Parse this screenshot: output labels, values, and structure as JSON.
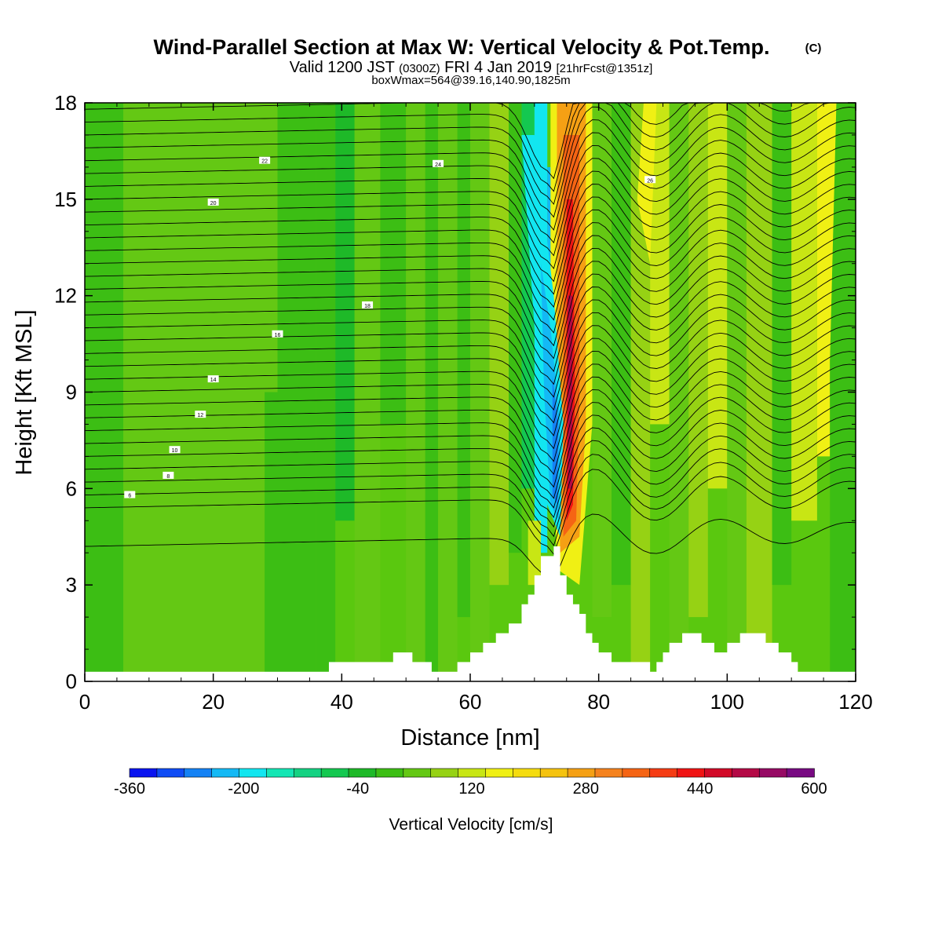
{
  "titles": {
    "main": "Wind-Parallel Section at Max W: Vertical Velocity & Pot.Temp.",
    "copyright": "(C)",
    "valid_prefix": "Valid 1200 JST",
    "valid_utc": "(0300Z)",
    "valid_date": "FRI 4 Jan 2019",
    "forecast": "[21hrFcst@1351z]",
    "boxwmax": "boxWmax=564@39.16,140.90,1825m"
  },
  "chart_data": {
    "type": "heatmap",
    "title": "Wind-Parallel Section at Max W: Vertical Velocity & Pot.Temp.",
    "xlabel": "Distance [nm]",
    "ylabel": "Height [Kft MSL]",
    "xlim": [
      0,
      120
    ],
    "ylim": [
      0,
      18
    ],
    "x_ticks": [
      "0",
      "20",
      "40",
      "60",
      "80",
      "100",
      "120"
    ],
    "y_ticks": [
      "0",
      "3",
      "6",
      "9",
      "12",
      "15",
      "18"
    ],
    "colorbar": {
      "label": "Vertical Velocity [cm/s]",
      "tick_labels": [
        "-360",
        "-200",
        "-40",
        "120",
        "280",
        "440",
        "600"
      ],
      "levels": [
        -360,
        600
      ],
      "colors": [
        "#0a14f0",
        "#0f4cf5",
        "#1482f5",
        "#14b9f5",
        "#12e6f0",
        "#14e6b4",
        "#14d282",
        "#14c850",
        "#1eb928",
        "#3cbe14",
        "#64c814",
        "#96d214",
        "#c8e614",
        "#f0f014",
        "#f5dc0f",
        "#f5c30f",
        "#f5a014",
        "#f5821e",
        "#f56414",
        "#f53c14",
        "#f01414",
        "#d20a28",
        "#b40a46",
        "#960a64",
        "#780a82"
      ]
    },
    "terrain_profile": [
      [
        0,
        0.3
      ],
      [
        36,
        0.3
      ],
      [
        38,
        0.6
      ],
      [
        47,
        0.6
      ],
      [
        48,
        0.9
      ],
      [
        50,
        0.9
      ],
      [
        51,
        0.6
      ],
      [
        54,
        0.3
      ],
      [
        57,
        0.3
      ],
      [
        58,
        0.6
      ],
      [
        60,
        0.9
      ],
      [
        62,
        1.2
      ],
      [
        64,
        1.5
      ],
      [
        66,
        1.8
      ],
      [
        68,
        2.4
      ],
      [
        69,
        2.7
      ],
      [
        70,
        3.3
      ],
      [
        71,
        3.9
      ],
      [
        73,
        4.2
      ],
      [
        74,
        3.3
      ],
      [
        75,
        2.7
      ],
      [
        76,
        2.4
      ],
      [
        77,
        2.1
      ],
      [
        78,
        1.5
      ],
      [
        79,
        1.2
      ],
      [
        80,
        0.9
      ],
      [
        82,
        0.6
      ],
      [
        88,
        0.3
      ],
      [
        89,
        0.6
      ],
      [
        90,
        0.9
      ],
      [
        91,
        1.2
      ],
      [
        93,
        1.5
      ],
      [
        95,
        1.5
      ],
      [
        96,
        1.2
      ],
      [
        98,
        0.9
      ],
      [
        100,
        1.2
      ],
      [
        102,
        1.5
      ],
      [
        104,
        1.5
      ],
      [
        106,
        1.2
      ],
      [
        108,
        0.9
      ],
      [
        110,
        0.6
      ],
      [
        111,
        0.3
      ],
      [
        120,
        0.3
      ]
    ],
    "shading_notes": "max updraft near 75 nm from 2 to 18 kft; downdraft band 71-74 nm",
    "theta_contour_labels": [
      "6",
      "8",
      "10",
      "12",
      "14",
      "16",
      "18",
      "20",
      "22",
      "24",
      "26"
    ],
    "grid": false
  }
}
